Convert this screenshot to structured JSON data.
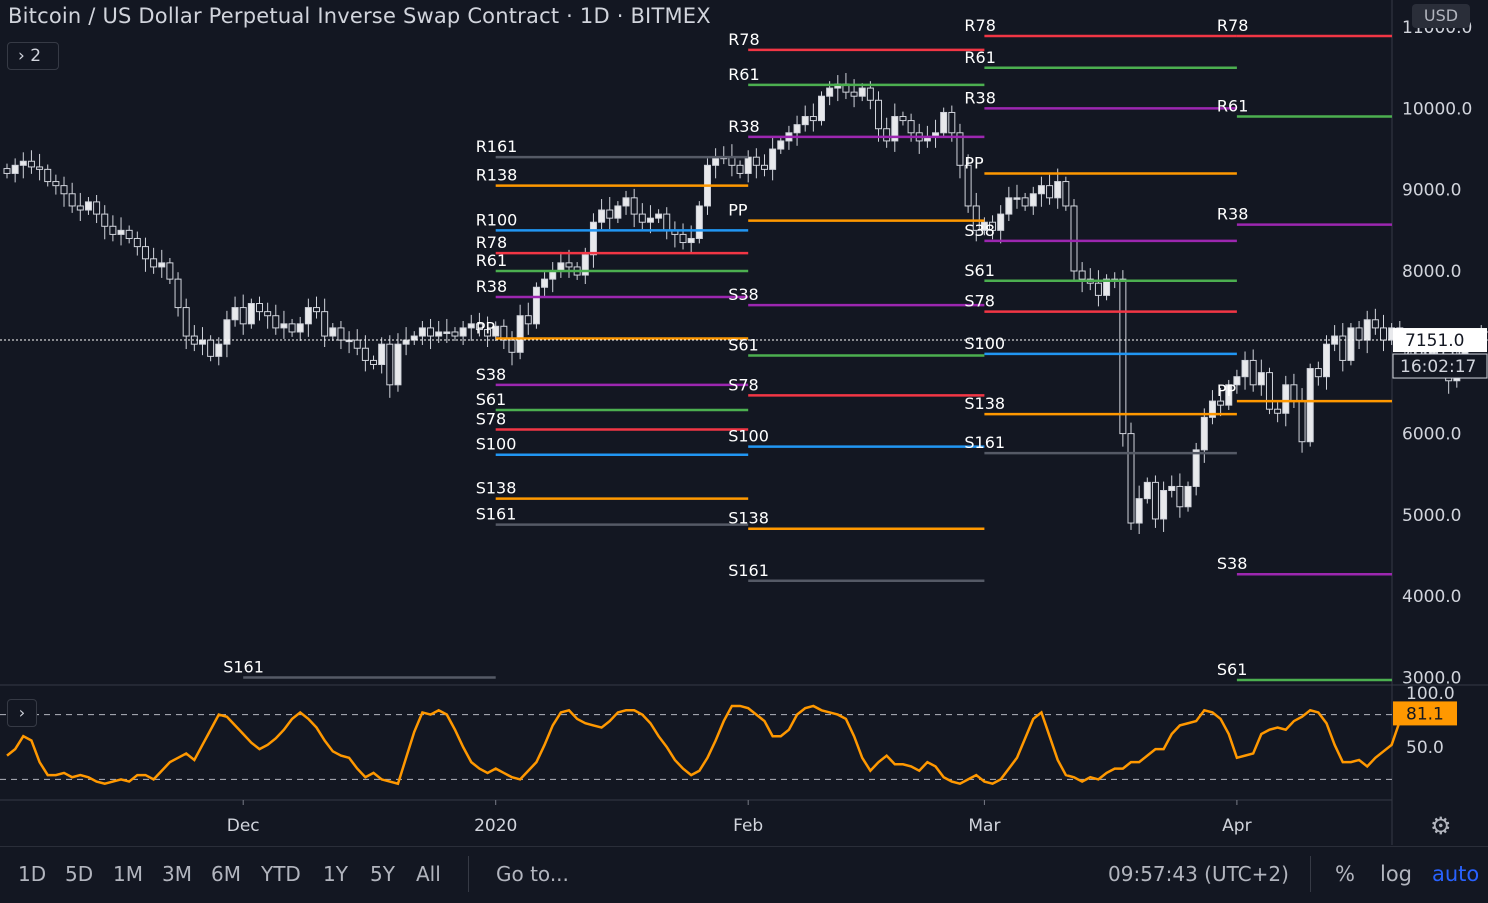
{
  "header": {
    "title": "Bitcoin / US Dollar Perpetual Inverse Swap Contract · 1D · BITMEX",
    "legend_toggle": "› 2",
    "osc_toggle": "›",
    "currency": "USD"
  },
  "colors": {
    "background": "#131722",
    "up_candle": "#d1d4dc",
    "down_candle": "#d1d4dc",
    "pp": "#ff9800",
    "r38s38": "#9c27b0",
    "r61s61": "#4caf50",
    "r78s78": "#f23645",
    "r100s100": "#2196f3",
    "r138s138": "#ff9800",
    "r161s161": "#555a66",
    "osc_line": "#ff9800",
    "price_badge": "#ffffff"
  },
  "chart_data": [
    {
      "type": "candlestick",
      "title": "Bitcoin / US Dollar Perpetual Inverse Swap Contract · 1D · BITMEX",
      "x_ticks": [
        "Dec",
        "2020",
        "Feb",
        "Mar",
        "Apr"
      ],
      "y_ticks": [
        "3000.0",
        "4000.0",
        "5000.0",
        "6000.0",
        "7000.0",
        "8000.0",
        "9000.0",
        "10000.0",
        "11000.0"
      ],
      "ylim": [
        3000,
        11000
      ],
      "start_date": "2019-11-02",
      "last_price": "7151.0",
      "countdown": "16:02:17",
      "close": [
        9200,
        9300,
        9350,
        9280,
        9250,
        9100,
        9050,
        8950,
        8800,
        8750,
        8850,
        8700,
        8550,
        8450,
        8500,
        8400,
        8300,
        8150,
        8050,
        8100,
        7900,
        7550,
        7200,
        7100,
        7150,
        6950,
        7100,
        7400,
        7550,
        7350,
        7600,
        7500,
        7450,
        7300,
        7350,
        7250,
        7350,
        7550,
        7500,
        7200,
        7300,
        7150,
        7150,
        7050,
        6900,
        6850,
        7100,
        6600,
        7100,
        7150,
        7200,
        7300,
        7200,
        7250,
        7250,
        7200,
        7300,
        7350,
        7280,
        7200,
        7320,
        7150,
        7000,
        7450,
        7350,
        7800,
        7900,
        8000,
        8100,
        8050,
        7950,
        8200,
        8600,
        8750,
        8650,
        8800,
        8900,
        8700,
        8600,
        8650,
        8700,
        8500,
        8450,
        8350,
        8400,
        8800,
        9300,
        9400,
        9400,
        9300,
        9200,
        9400,
        9300,
        9250,
        9500,
        9600,
        9700,
        9800,
        9900,
        9850,
        10150,
        10250,
        10300,
        10200,
        10150,
        10250,
        10100,
        9750,
        9600,
        9900,
        9850,
        9700,
        9600,
        9650,
        9700,
        9950,
        9700,
        9300,
        8800,
        8500,
        8600,
        8500,
        8700,
        8900,
        8900,
        8800,
        8950,
        9050,
        8900,
        9100,
        8800,
        8000,
        7900,
        7850,
        7700,
        7900,
        7900,
        6000,
        4900,
        5200,
        5400,
        4950,
        5300,
        5350,
        5100,
        5350,
        5800,
        6200,
        6400,
        6350,
        6600,
        6700,
        6900,
        6600,
        6750,
        6300,
        6250,
        6600,
        6400,
        5900,
        6800,
        6700,
        7100,
        7200,
        6900,
        7300,
        7150,
        7400,
        7300,
        7150,
        7300,
        7150,
        6900,
        6850,
        6900,
        7100,
        6800,
        6650,
        6900,
        7100,
        7150,
        7250,
        7151
      ],
      "pivot_periods": [
        {
          "label_x": "Dec",
          "levels": [
            {
              "name": "S161",
              "value": 3000
            }
          ]
        },
        {
          "label_x": "2020",
          "levels": [
            {
              "name": "R161",
              "value": 9400
            },
            {
              "name": "R138",
              "value": 9050
            },
            {
              "name": "R100",
              "value": 8500
            },
            {
              "name": "R78",
              "value": 8220
            },
            {
              "name": "R61",
              "value": 8000
            },
            {
              "name": "R38",
              "value": 7680
            },
            {
              "name": "PP",
              "value": 7170
            },
            {
              "name": "S38",
              "value": 6600
            },
            {
              "name": "S61",
              "value": 6290
            },
            {
              "name": "S78",
              "value": 6050
            },
            {
              "name": "S100",
              "value": 5740
            },
            {
              "name": "S138",
              "value": 5200
            },
            {
              "name": "S161",
              "value": 4880
            }
          ]
        },
        {
          "label_x": "Feb",
          "levels": [
            {
              "name": "R78",
              "value": 10720
            },
            {
              "name": "R61",
              "value": 10290
            },
            {
              "name": "R38",
              "value": 9650
            },
            {
              "name": "PP",
              "value": 8620
            },
            {
              "name": "S38",
              "value": 7580
            },
            {
              "name": "S61",
              "value": 6960
            },
            {
              "name": "S78",
              "value": 6470
            },
            {
              "name": "S100",
              "value": 5840
            },
            {
              "name": "S138",
              "value": 4830
            },
            {
              "name": "S161",
              "value": 4190
            }
          ]
        },
        {
          "label_x": "Mar",
          "levels": [
            {
              "name": "R78",
              "value": 10890
            },
            {
              "name": "R61",
              "value": 10500
            },
            {
              "name": "R38",
              "value": 10000
            },
            {
              "name": "PP",
              "value": 9200
            },
            {
              "name": "S38",
              "value": 8370
            },
            {
              "name": "S61",
              "value": 7880
            },
            {
              "name": "S78",
              "value": 7500
            },
            {
              "name": "S100",
              "value": 6980
            },
            {
              "name": "S138",
              "value": 6240
            },
            {
              "name": "S161",
              "value": 5760
            }
          ]
        },
        {
          "label_x": "Apr",
          "levels": [
            {
              "name": "R78",
              "value": 10890
            },
            {
              "name": "R61",
              "value": 9900
            },
            {
              "name": "R38",
              "value": 8570
            },
            {
              "name": "PP",
              "value": 6400
            },
            {
              "name": "S38",
              "value": 4270
            },
            {
              "name": "S61",
              "value": 2970
            }
          ]
        }
      ]
    },
    {
      "type": "line",
      "title": "",
      "y_ticks": [
        "100.0",
        "50.0"
      ],
      "last_value": "81.1",
      "ylim": [
        0,
        100
      ],
      "levels": [
        80,
        20
      ],
      "values": [
        42,
        48,
        60,
        56,
        36,
        24,
        24,
        26,
        22,
        24,
        22,
        18,
        16,
        18,
        20,
        18,
        24,
        24,
        20,
        28,
        36,
        40,
        44,
        38,
        52,
        66,
        80,
        78,
        70,
        62,
        54,
        48,
        52,
        58,
        66,
        76,
        82,
        76,
        68,
        56,
        46,
        42,
        40,
        30,
        22,
        26,
        20,
        18,
        16,
        40,
        64,
        82,
        80,
        84,
        80,
        66,
        50,
        36,
        30,
        26,
        30,
        26,
        22,
        20,
        28,
        36,
        52,
        70,
        82,
        84,
        76,
        72,
        70,
        68,
        74,
        82,
        84,
        84,
        80,
        72,
        60,
        50,
        38,
        30,
        24,
        28,
        40,
        56,
        74,
        88,
        88,
        86,
        80,
        74,
        60,
        60,
        66,
        80,
        86,
        88,
        84,
        82,
        80,
        76,
        60,
        40,
        28,
        36,
        42,
        34,
        34,
        32,
        28,
        36,
        32,
        22,
        18,
        16,
        20,
        24,
        18,
        16,
        20,
        30,
        40,
        58,
        76,
        82,
        60,
        38,
        24,
        22,
        18,
        22,
        20,
        26,
        30,
        30,
        36,
        36,
        42,
        48,
        48,
        62,
        70,
        72,
        74,
        84,
        82,
        76,
        62,
        40,
        42,
        44,
        62,
        66,
        68,
        66,
        74,
        78,
        84,
        82,
        72,
        52,
        36,
        36,
        38,
        32,
        40,
        46,
        52,
        74,
        80,
        81.1
      ]
    }
  ],
  "x_axis": {
    "labels": [
      "Dec",
      "2020",
      "Feb",
      "Mar",
      "Apr"
    ]
  },
  "bottom_bar": {
    "ranges": [
      "1D",
      "5D",
      "1M",
      "3M",
      "6M",
      "YTD",
      "1Y",
      "5Y",
      "All"
    ],
    "goto": "Go to...",
    "clock": "09:57:43 (UTC+2)",
    "options": [
      "%",
      "log",
      "auto"
    ],
    "active_option": "auto"
  }
}
